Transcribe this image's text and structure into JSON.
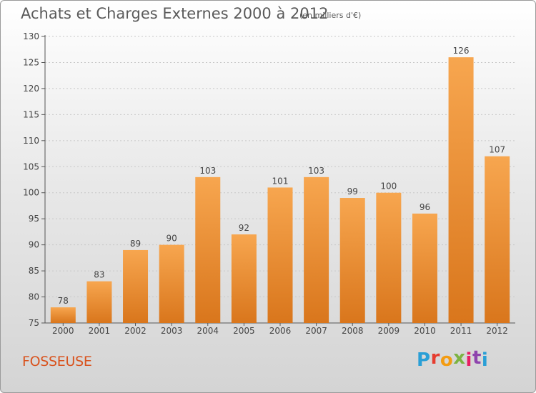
{
  "header": {
    "title": "Achats et Charges Externes 2000 à 2012",
    "subtitle": "(en milliers d'€)"
  },
  "footer": {
    "location": "FOSSEUSE",
    "logo": {
      "letters": [
        "P",
        "r",
        "o",
        "x",
        "i",
        "t",
        "i"
      ],
      "colors": [
        "#2a9fd6",
        "#e63c2f",
        "#f39c12",
        "#7cb342",
        "#e91e63",
        "#8e44ad",
        "#2a9fd6"
      ]
    }
  },
  "colors": {
    "bar_light": "#f7a64f",
    "bar_dark": "#d9761c",
    "axis": "#555555",
    "grid": "#c8c8c8",
    "label": "#444444"
  },
  "chart_data": {
    "type": "bar",
    "title": "Achats et Charges Externes 2000 à 2012",
    "subtitle": "(en milliers d'€)",
    "categories": [
      "2000",
      "2001",
      "2002",
      "2003",
      "2004",
      "2005",
      "2006",
      "2007",
      "2008",
      "2009",
      "2010",
      "2011",
      "2012"
    ],
    "values": [
      78,
      83,
      89,
      90,
      103,
      92,
      101,
      103,
      99,
      100,
      96,
      126,
      107
    ],
    "ylim": [
      75,
      130
    ],
    "yticks": [
      75,
      80,
      85,
      90,
      95,
      100,
      105,
      110,
      115,
      120,
      125,
      130
    ],
    "grid": true,
    "legend": "none"
  }
}
